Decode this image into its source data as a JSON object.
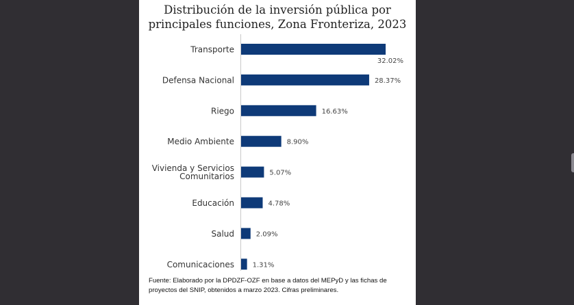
{
  "chart_data": {
    "type": "bar",
    "orientation": "horizontal",
    "title": "Distribución de la inversión pública por principales funciones, Zona Fronteriza, 2023",
    "title_lines": [
      "Distribución de la inversión pública por",
      "principales funciones, Zona Fronteriza, 2023"
    ],
    "categories": [
      "Transporte",
      "Defensa Nacional",
      "Riego",
      "Medio Ambiente",
      "Vivienda y Servicios Comunitarios",
      "Educación",
      "Salud",
      "Comunicaciones"
    ],
    "category_lines": [
      [
        "Transporte"
      ],
      [
        "Defensa Nacional"
      ],
      [
        "Riego"
      ],
      [
        "Medio Ambiente"
      ],
      [
        "Vivienda y Servicios",
        "Comunitarios"
      ],
      [
        "Educación"
      ],
      [
        "Salud"
      ],
      [
        "Comunicaciones"
      ]
    ],
    "values": [
      32.02,
      28.37,
      16.63,
      8.9,
      5.07,
      4.78,
      2.09,
      1.31
    ],
    "data_labels": [
      "32.02%",
      "28.37%",
      "16.63%",
      "8.90%",
      "5.07%",
      "4.78%",
      "2.09%",
      "1.31%"
    ],
    "unit": "%",
    "xlim": [
      0,
      33
    ],
    "grid": false,
    "legend": "none",
    "bar_color": "#0e3a78"
  },
  "source_note": "Fuente: Elaborado por la DPDZF-OZF en base a datos del MEPyD y las fichas de proyectos del SNIP, obtenidos a marzo 2023. Cifras preliminares."
}
